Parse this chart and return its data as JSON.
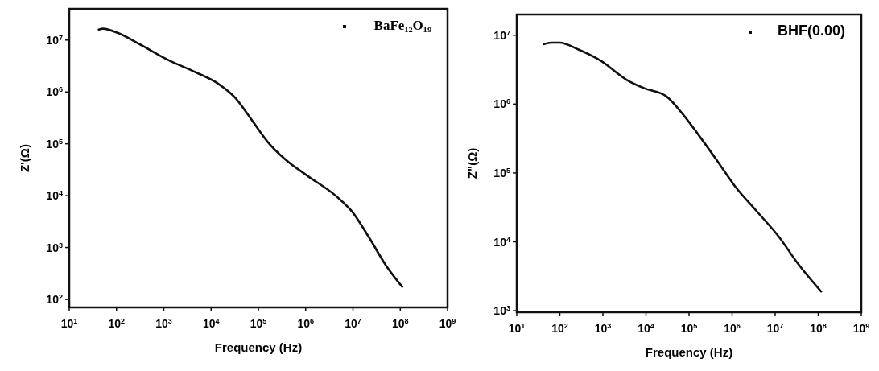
{
  "chart_data": [
    {
      "type": "line",
      "xlabel": "Frequency (Hz)",
      "ylabel": "Z'(Ω)",
      "log": "xy",
      "legend": "top right",
      "marker": "none",
      "line_style": "solid",
      "grid": false,
      "xlim": [
        10,
        1000000000
      ],
      "ylim": [
        70,
        40000000
      ],
      "xticks": [
        {
          "value": 10,
          "label": "10$^{1}$"
        },
        {
          "value": 100,
          "label": "10$^{2}$"
        },
        {
          "value": 1000,
          "label": "10$^{3}$"
        },
        {
          "value": 10000,
          "label": "10$^{4}$"
        },
        {
          "value": 100000,
          "label": "10$^{5}$"
        },
        {
          "value": 1000000,
          "label": "10$^{6}$"
        },
        {
          "value": 10000000,
          "label": "10$^{7}$"
        },
        {
          "value": 100000000,
          "label": "10$^{8}$"
        },
        {
          "value": 1000000000,
          "label": "10$^{9}$"
        }
      ],
      "yticks": [
        {
          "value": 100,
          "label": "10$^{2}$"
        },
        {
          "value": 1000,
          "label": "10$^{3}$"
        },
        {
          "value": 10000,
          "label": "10$^{4}$"
        },
        {
          "value": 100000,
          "label": "10$^{5}$"
        },
        {
          "value": 1000000,
          "label": "10$^{6}$"
        },
        {
          "value": 10000000,
          "label": "10$^{7}$"
        }
      ],
      "series": [
        {
          "name": "BaFe₁₂O₁₉",
          "color": "#111111",
          "x": [
            42,
            52,
            105,
            310,
            1200,
            4700,
            14000,
            32000,
            72000,
            160000,
            370000,
            1100000,
            4300000,
            9800000,
            22000000,
            50000000,
            110000000
          ],
          "values": [
            16000000,
            16600000,
            13800000,
            8300000,
            4200000,
            2400000,
            1450000,
            780000,
            290000,
            107000,
            50000,
            24000,
            10000,
            4800,
            1550,
            450,
            175
          ]
        }
      ]
    },
    {
      "type": "line",
      "xlabel": "Frequency (Hz)",
      "ylabel": "Z\"(Ω)",
      "log": "xy",
      "legend": "top right",
      "marker": "none",
      "line_style": "solid",
      "grid": false,
      "xlim": [
        10,
        1000000000
      ],
      "ylim": [
        950,
        20000000
      ],
      "xticks": [
        {
          "value": 10,
          "label": "10$^{1}$"
        },
        {
          "value": 100,
          "label": "10$^{2}$"
        },
        {
          "value": 1000,
          "label": "10$^{3}$"
        },
        {
          "value": 10000,
          "label": "10$^{4}$"
        },
        {
          "value": 100000,
          "label": "10$^{5}$"
        },
        {
          "value": 1000000,
          "label": "10$^{6}$"
        },
        {
          "value": 10000000,
          "label": "10$^{7}$"
        },
        {
          "value": 100000000,
          "label": "10$^{8}$"
        },
        {
          "value": 1000000000,
          "label": "10$^{9}$"
        }
      ],
      "yticks": [
        {
          "value": 1000,
          "label": "10$^{3}$"
        },
        {
          "value": 10000,
          "label": "10$^{4}$"
        },
        {
          "value": 100000,
          "label": "10$^{5}$"
        },
        {
          "value": 1000000,
          "label": "10$^{6}$"
        },
        {
          "value": 10000000,
          "label": "10$^{7}$"
        }
      ],
      "series": [
        {
          "name": "BHF(0.00)",
          "color": "#111111",
          "x": [
            42,
            63,
            98,
            270,
            870,
            3800,
            9100,
            30000,
            71000,
            170000,
            420000,
            1150000,
            3700000,
            12000000,
            34000000,
            117000000
          ],
          "values": [
            7400000,
            7800000,
            7800000,
            6200000,
            4300000,
            2200000,
            1700000,
            1290000,
            720000,
            350000,
            160000,
            65000,
            28000,
            12000,
            4800,
            1900
          ]
        }
      ]
    }
  ]
}
